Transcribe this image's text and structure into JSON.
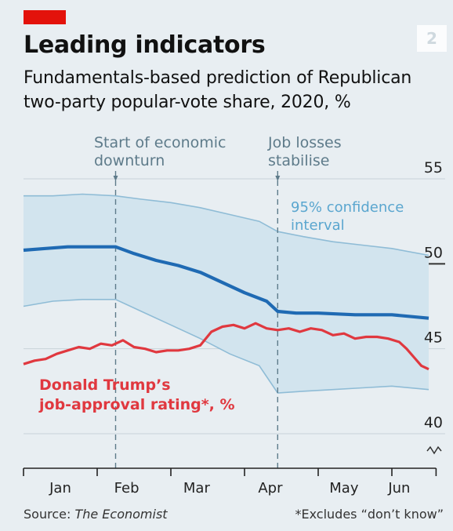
{
  "header": {
    "badge_number": "2",
    "title": "Leading indicators",
    "subtitle": "Fundamentals-based prediction of Republican two-party popular-vote share, 2020, %"
  },
  "annotations": {
    "downturn": [
      "Start of economic",
      "downturn"
    ],
    "job_losses": [
      "Job losses",
      "stabilise"
    ],
    "confidence": [
      "95% confidence",
      "interval"
    ],
    "trump": [
      "Donald Trump’s",
      "job-approval rating*, %"
    ]
  },
  "footer": {
    "source_label": "Source: ",
    "source_name": "The Economist",
    "note": "*Excludes “don’t know”"
  },
  "colors": {
    "background": "#e8eef2",
    "prediction": "#1f6ab3",
    "band_fill": "#d2e4ee",
    "band_edge": "#8fbcd6",
    "approval": "#e0383f",
    "annotation": "#5e7b8a",
    "confidence_label": "#5aa6cf",
    "brand_red": "#e3120b"
  },
  "chart_data": {
    "type": "line",
    "x_unit": "2020 month index (Jan 1 = 0, Jul 1 = 6)",
    "xlim": [
      0,
      5.6
    ],
    "ylim": [
      40,
      55
    ],
    "y_axis_broken_below": 40,
    "yticks": [
      55,
      50,
      45,
      40
    ],
    "ytick_labels": [
      "55",
      "50",
      "45",
      "40"
    ],
    "reference_line_y": 50,
    "month_boundaries": [
      0,
      1,
      2,
      3,
      4,
      5
    ],
    "month_labels": [
      {
        "label": "Jan",
        "x": 0.5
      },
      {
        "label": "Feb",
        "x": 1.4
      },
      {
        "label": "Mar",
        "x": 2.35
      },
      {
        "label": "Apr",
        "x": 3.35
      },
      {
        "label": "May",
        "x": 4.35
      },
      {
        "label": "Jun",
        "x": 5.1
      }
    ],
    "vlines": [
      {
        "x": 1.25,
        "name": "downturn"
      },
      {
        "x": 3.45,
        "name": "job_losses"
      }
    ],
    "series": [
      {
        "name": "prediction",
        "x": [
          0,
          0.3,
          0.6,
          0.9,
          1.25,
          1.5,
          1.8,
          2.1,
          2.4,
          2.7,
          3.0,
          3.3,
          3.45,
          3.7,
          4.0,
          4.5,
          5.0,
          5.5
        ],
        "y": [
          50.8,
          50.9,
          51.0,
          51.0,
          51.0,
          50.6,
          50.2,
          49.9,
          49.5,
          48.9,
          48.3,
          47.8,
          47.2,
          47.1,
          47.1,
          47.0,
          47.0,
          46.8
        ]
      },
      {
        "name": "ci_upper",
        "x": [
          0,
          0.4,
          0.8,
          1.25,
          1.6,
          2.0,
          2.4,
          2.8,
          3.2,
          3.45,
          3.8,
          4.2,
          4.6,
          5.0,
          5.5
        ],
        "y": [
          54.0,
          54.0,
          54.1,
          54.0,
          53.8,
          53.6,
          53.3,
          52.9,
          52.5,
          51.9,
          51.6,
          51.3,
          51.1,
          50.9,
          50.5
        ]
      },
      {
        "name": "ci_lower",
        "x": [
          0,
          0.4,
          0.8,
          1.25,
          1.6,
          2.0,
          2.4,
          2.8,
          3.2,
          3.45,
          3.8,
          4.2,
          4.6,
          5.0,
          5.5
        ],
        "y": [
          47.5,
          47.8,
          47.9,
          47.9,
          47.2,
          46.4,
          45.6,
          44.7,
          44.0,
          42.4,
          42.5,
          42.6,
          42.7,
          42.8,
          42.6
        ]
      },
      {
        "name": "approval",
        "x": [
          0,
          0.15,
          0.3,
          0.45,
          0.6,
          0.75,
          0.9,
          1.05,
          1.2,
          1.35,
          1.5,
          1.65,
          1.8,
          1.95,
          2.1,
          2.25,
          2.4,
          2.55,
          2.7,
          2.85,
          3.0,
          3.15,
          3.3,
          3.45,
          3.6,
          3.75,
          3.9,
          4.05,
          4.2,
          4.35,
          4.5,
          4.65,
          4.8,
          4.95,
          5.1,
          5.2,
          5.3,
          5.4,
          5.5
        ],
        "y": [
          44.1,
          44.3,
          44.4,
          44.7,
          44.9,
          45.1,
          45.0,
          45.3,
          45.2,
          45.5,
          45.1,
          45.0,
          44.8,
          44.9,
          44.9,
          45.0,
          45.2,
          46.0,
          46.3,
          46.4,
          46.2,
          46.5,
          46.2,
          46.1,
          46.2,
          46.0,
          46.2,
          46.1,
          45.8,
          45.9,
          45.6,
          45.7,
          45.7,
          45.6,
          45.4,
          45.0,
          44.5,
          44.0,
          43.8
        ]
      }
    ]
  }
}
